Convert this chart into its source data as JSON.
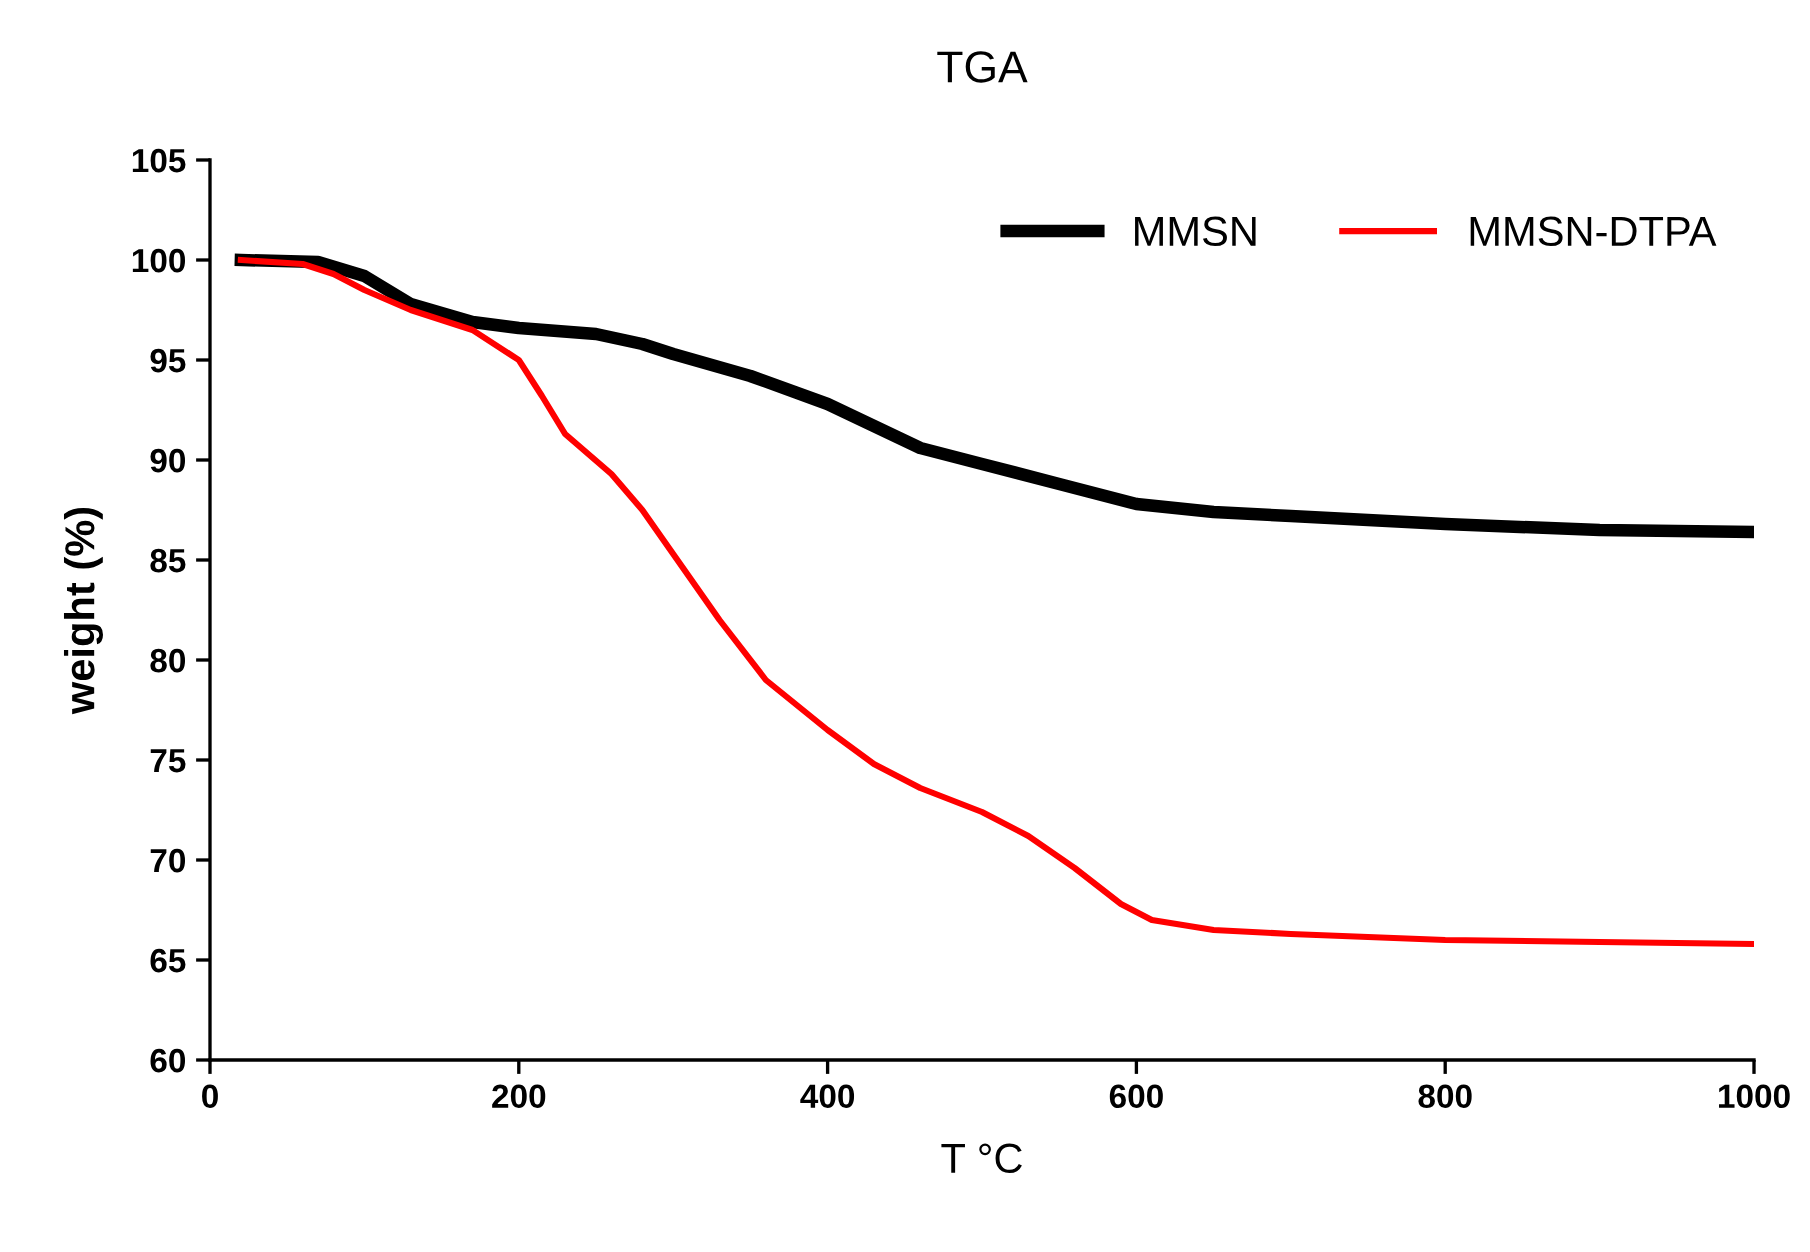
{
  "chart_data": {
    "type": "line",
    "title": "TGA",
    "xlabel": "T °C",
    "ylabel": "weight (%)",
    "xlim": [
      0,
      1000
    ],
    "xticks": [
      0,
      200,
      400,
      600,
      800,
      1000
    ],
    "ylim": [
      60,
      105
    ],
    "yticks": [
      60,
      65,
      70,
      75,
      80,
      85,
      90,
      95,
      100,
      105
    ],
    "grid": false,
    "legend": "top right",
    "marker": "none",
    "line_style": "solid",
    "series": [
      {
        "name": "MMSN",
        "color": "#000000",
        "x": [
          20,
          70,
          100,
          130,
          170,
          200,
          250,
          280,
          300,
          350,
          400,
          430,
          460,
          500,
          550,
          600,
          650,
          700,
          800,
          900,
          1000
        ],
        "values": [
          100,
          99.9,
          99.2,
          97.8,
          96.9,
          96.6,
          96.3,
          95.8,
          95.3,
          94.2,
          92.8,
          91.7,
          90.6,
          89.8,
          88.8,
          87.8,
          87.4,
          87.2,
          86.8,
          86.5,
          86.4
        ]
      },
      {
        "name": "MMSN-DTPA",
        "color": "#ff0000",
        "x": [
          20,
          60,
          80,
          100,
          130,
          170,
          200,
          215,
          230,
          260,
          280,
          300,
          330,
          360,
          400,
          430,
          460,
          500,
          530,
          560,
          590,
          610,
          650,
          700,
          800,
          900,
          1000
        ],
        "values": [
          100,
          99.8,
          99.3,
          98.5,
          97.5,
          96.5,
          95.0,
          93.2,
          91.3,
          89.3,
          87.5,
          85.3,
          82.0,
          79.0,
          76.5,
          74.8,
          73.6,
          72.4,
          71.2,
          69.6,
          67.8,
          67.0,
          66.5,
          66.3,
          66.0,
          65.9,
          65.8
        ]
      }
    ]
  }
}
